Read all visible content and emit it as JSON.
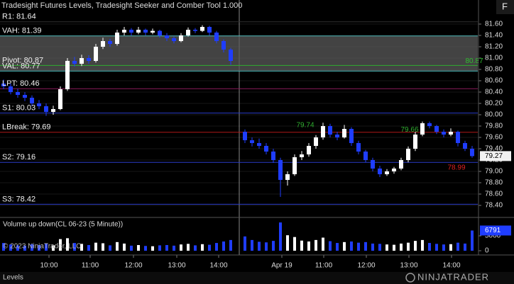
{
  "header": {
    "title": "Tradesight Futures Levels, Tradesight Seeker and Comber Tool 1.000",
    "button": "F"
  },
  "chart_data": {
    "type": "candlestick",
    "x": [
      0,
      1,
      2,
      3,
      4,
      5,
      6,
      7,
      8,
      9,
      10,
      11,
      12,
      13,
      14,
      15,
      16,
      17,
      18,
      19,
      20,
      21,
      22,
      23,
      24,
      25,
      26,
      27,
      28,
      29,
      30,
      31,
      32,
      34,
      35,
      36,
      37,
      38,
      39,
      40,
      41,
      42,
      43,
      44,
      45,
      46,
      47,
      48,
      49,
      50,
      51,
      52,
      53,
      54,
      55,
      56,
      57,
      58,
      59,
      60,
      61,
      62,
      63,
      64,
      65,
      66
    ],
    "ohlc": [
      [
        80.55,
        80.62,
        80.45,
        80.5
      ],
      [
        80.5,
        80.55,
        80.36,
        80.4
      ],
      [
        80.4,
        80.46,
        80.3,
        80.35
      ],
      [
        80.35,
        80.4,
        80.24,
        80.3
      ],
      [
        80.3,
        80.34,
        80.15,
        80.2
      ],
      [
        80.2,
        80.26,
        80.1,
        80.15
      ],
      [
        80.15,
        80.2,
        79.98,
        80.05
      ],
      [
        80.05,
        80.16,
        80.0,
        80.1
      ],
      [
        80.1,
        80.5,
        80.08,
        80.45
      ],
      [
        80.45,
        81.0,
        80.42,
        80.95
      ],
      [
        80.95,
        81.02,
        80.85,
        80.9
      ],
      [
        80.9,
        81.06,
        80.86,
        81.0
      ],
      [
        81.0,
        81.05,
        80.9,
        80.95
      ],
      [
        80.95,
        81.25,
        80.92,
        81.2
      ],
      [
        81.2,
        81.36,
        81.16,
        81.3
      ],
      [
        81.3,
        81.34,
        81.2,
        81.25
      ],
      [
        81.25,
        81.5,
        81.22,
        81.45
      ],
      [
        81.45,
        81.55,
        81.4,
        81.5
      ],
      [
        81.5,
        81.53,
        81.4,
        81.45
      ],
      [
        81.45,
        81.55,
        81.42,
        81.5
      ],
      [
        81.5,
        81.52,
        81.4,
        81.45
      ],
      [
        81.45,
        81.52,
        81.42,
        81.48
      ],
      [
        81.48,
        81.5,
        81.36,
        81.4
      ],
      [
        81.4,
        81.44,
        81.3,
        81.35
      ],
      [
        81.35,
        81.38,
        81.26,
        81.3
      ],
      [
        81.3,
        81.44,
        81.28,
        81.4
      ],
      [
        81.4,
        81.54,
        81.38,
        81.5
      ],
      [
        81.5,
        81.53,
        81.44,
        81.48
      ],
      [
        81.48,
        81.58,
        81.46,
        81.55
      ],
      [
        81.55,
        81.57,
        81.4,
        81.45
      ],
      [
        81.45,
        81.48,
        81.26,
        81.3
      ],
      [
        81.3,
        81.33,
        81.1,
        81.15
      ],
      [
        81.15,
        81.18,
        80.88,
        80.95
      ],
      [
        79.7,
        79.74,
        79.5,
        79.55
      ],
      [
        79.55,
        79.6,
        79.44,
        79.5
      ],
      [
        79.5,
        79.58,
        79.4,
        79.45
      ],
      [
        79.45,
        79.5,
        79.3,
        79.35
      ],
      [
        79.35,
        79.4,
        79.15,
        79.2
      ],
      [
        79.2,
        79.24,
        78.55,
        78.85
      ],
      [
        78.85,
        79.0,
        78.75,
        78.95
      ],
      [
        78.95,
        79.3,
        78.92,
        79.25
      ],
      [
        79.25,
        79.36,
        79.2,
        79.3
      ],
      [
        79.3,
        79.5,
        79.26,
        79.45
      ],
      [
        79.45,
        79.64,
        79.4,
        79.6
      ],
      [
        79.6,
        79.86,
        79.56,
        79.8
      ],
      [
        79.8,
        79.84,
        79.6,
        79.65
      ],
      [
        79.65,
        79.7,
        79.55,
        79.6
      ],
      [
        79.6,
        79.82,
        79.58,
        79.75
      ],
      [
        79.75,
        79.78,
        79.45,
        79.5
      ],
      [
        79.5,
        79.54,
        79.3,
        79.35
      ],
      [
        79.35,
        79.38,
        79.16,
        79.2
      ],
      [
        79.2,
        79.24,
        79.0,
        79.05
      ],
      [
        79.05,
        79.1,
        78.9,
        78.95
      ],
      [
        78.95,
        79.04,
        78.92,
        79.0
      ],
      [
        79.0,
        79.08,
        78.96,
        79.05
      ],
      [
        79.05,
        79.24,
        79.02,
        79.2
      ],
      [
        79.2,
        79.44,
        79.16,
        79.4
      ],
      [
        79.4,
        79.7,
        79.36,
        79.65
      ],
      [
        79.65,
        79.88,
        79.62,
        79.85
      ],
      [
        79.85,
        79.88,
        79.76,
        79.8
      ],
      [
        79.8,
        79.82,
        79.66,
        79.7
      ],
      [
        79.7,
        79.74,
        79.6,
        79.65
      ],
      [
        79.65,
        79.76,
        79.62,
        79.7
      ],
      [
        79.7,
        79.72,
        79.44,
        79.5
      ],
      [
        79.5,
        79.54,
        79.36,
        79.4
      ],
      [
        79.4,
        79.45,
        79.24,
        79.27
      ]
    ],
    "up_color": "#ffffff",
    "down_color": "#1f3dff",
    "xlim": [
      -0.5,
      66.8
    ],
    "ylim": [
      78.2,
      82.0
    ],
    "grid": true,
    "yticks": [
      {
        "value": 81.6,
        "label": "81.60"
      },
      {
        "value": 81.4,
        "label": "81.40"
      },
      {
        "value": 81.2,
        "label": "81.20"
      },
      {
        "value": 81.0,
        "label": "81.00"
      },
      {
        "value": 80.8,
        "label": "80.80"
      },
      {
        "value": 80.6,
        "label": "80.60"
      },
      {
        "value": 80.4,
        "label": "80.40"
      },
      {
        "value": 80.2,
        "label": "80.20"
      },
      {
        "value": 80.0,
        "label": "80.00"
      },
      {
        "value": 79.8,
        "label": "79.80"
      },
      {
        "value": 79.6,
        "label": "79.60"
      },
      {
        "value": 79.4,
        "label": "79.40"
      },
      {
        "value": 79.2,
        "label": "79.20"
      },
      {
        "value": 79.0,
        "label": "79.00"
      },
      {
        "value": 78.8,
        "label": "78.80"
      },
      {
        "value": 78.6,
        "label": "78.60"
      },
      {
        "value": 78.4,
        "label": "78.40"
      }
    ],
    "xticks": [
      {
        "value": 6.4,
        "label": "10:00"
      },
      {
        "value": 12.2,
        "label": "11:00"
      },
      {
        "value": 18.3,
        "label": "12:00"
      },
      {
        "value": 24.4,
        "label": "13:00"
      },
      {
        "value": 30.3,
        "label": "14:00"
      },
      {
        "value": 39.2,
        "label": "Apr 19"
      },
      {
        "value": 45.1,
        "label": "11:00"
      },
      {
        "value": 51.1,
        "label": "12:00"
      },
      {
        "value": 57.1,
        "label": "13:00"
      },
      {
        "value": 63.1,
        "label": "14:00"
      }
    ],
    "session_break": 33.2,
    "levels": [
      {
        "label": "R1: 81.64",
        "value": 81.64,
        "color": "#303030"
      },
      {
        "label": "VAH: 81.39",
        "value": 81.39,
        "color": "#46b4b4"
      },
      {
        "label": "Pivot: 80.87",
        "value": 80.87,
        "color": "#2fae2f"
      },
      {
        "label": "VAL: 80.77",
        "value": 80.77,
        "color": "#46b4b4"
      },
      {
        "label": "LPT: 80.46",
        "value": 80.46,
        "color": "#8a1a5a"
      },
      {
        "label": "S1: 80.03",
        "value": 80.03,
        "color": "#2a3cc8"
      },
      {
        "label": "LBreak: 79.69",
        "value": 79.69,
        "color": "#b01818"
      },
      {
        "label": "S2: 79.16",
        "value": 79.16,
        "color": "#2a3cc8"
      },
      {
        "label": "S3: 78.42",
        "value": 78.42,
        "color": "#2a3cc8"
      }
    ],
    "price_labels": [
      {
        "value": 80.87,
        "x": 66.3,
        "color": "#2fbf2f"
      },
      {
        "value": 79.74,
        "x": 42.5,
        "color": "#2fae2f"
      },
      {
        "value": 79.66,
        "x": 57.2,
        "color": "#2fae2f"
      },
      {
        "value": 78.99,
        "x": 63.8,
        "color": "#e02020"
      }
    ],
    "last_price": 79.27,
    "volume": {
      "title": "Volume up down(CL 06-23 (5 Minute))",
      "values": [
        2600,
        2100,
        1800,
        1700,
        2200,
        1900,
        2400,
        1800,
        3900,
        4200,
        2600,
        2300,
        1900,
        2700,
        2500,
        1800,
        2900,
        2400,
        1700,
        1900,
        1600,
        1500,
        1800,
        1900,
        1700,
        2100,
        2300,
        1800,
        2200,
        2000,
        2600,
        3100,
        3600,
        4800,
        3600,
        3000,
        2800,
        3300,
        9500,
        5200,
        4600,
        3400,
        3100,
        3600,
        4400,
        3200,
        2600,
        2900,
        3100,
        2700,
        2900,
        2400,
        2300,
        2100,
        2000,
        2400,
        2700,
        3300,
        3600,
        2600,
        2300,
        2100,
        2200,
        2700,
        2400,
        6791
      ],
      "ylim": [
        0,
        10000
      ],
      "yticks": [
        0,
        5000
      ],
      "last": 6791
    }
  },
  "footer": {
    "copyright": "© 2023 NinjaTrader, LLC",
    "tab": "Levels",
    "logo": "NINJATRADER"
  }
}
